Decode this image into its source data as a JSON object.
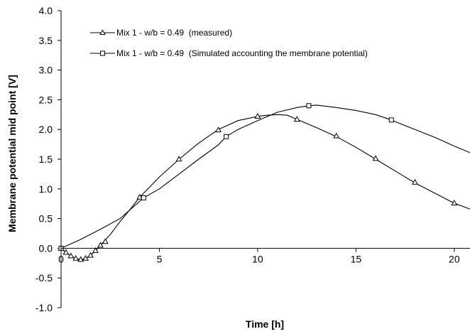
{
  "chart_data": {
    "type": "line",
    "xlabel": "Time [h]",
    "ylabel": "Membrane potential mid point [V]",
    "xlim": [
      0,
      20.8
    ],
    "ylim": [
      -1.0,
      4.0
    ],
    "x_ticks": [
      "0",
      "5",
      "10",
      "15",
      "20"
    ],
    "y_ticks": [
      "4.0",
      "3.5",
      "3.0",
      "2.5",
      "2.0",
      "1.5",
      "1.0",
      "0.5",
      "0.0",
      "-0.5",
      "-1.0"
    ],
    "grid": false,
    "legend_position": "top-left",
    "series": [
      {
        "name": "Mix 1 - w/b = 0.49  (measured)",
        "marker": "triangle",
        "curve": [
          [
            0,
            0
          ],
          [
            0.25,
            -0.07
          ],
          [
            0.5,
            -0.13
          ],
          [
            0.75,
            -0.17
          ],
          [
            1.0,
            -0.19
          ],
          [
            1.25,
            -0.17
          ],
          [
            1.5,
            -0.12
          ],
          [
            1.75,
            -0.04
          ],
          [
            2.0,
            0.05
          ],
          [
            2.5,
            0.23
          ],
          [
            3.0,
            0.45
          ],
          [
            3.5,
            0.65
          ],
          [
            4.0,
            0.86
          ],
          [
            5.0,
            1.2
          ],
          [
            6.0,
            1.5
          ],
          [
            7.0,
            1.77
          ],
          [
            8.0,
            2.0
          ],
          [
            9.0,
            2.15
          ],
          [
            10.0,
            2.22
          ],
          [
            10.5,
            2.24
          ],
          [
            11.0,
            2.25
          ],
          [
            11.5,
            2.24
          ],
          [
            12.0,
            2.17
          ],
          [
            13.0,
            2.03
          ],
          [
            14.0,
            1.88
          ],
          [
            15.0,
            1.7
          ],
          [
            16.0,
            1.5
          ],
          [
            17.0,
            1.3
          ],
          [
            18.0,
            1.1
          ],
          [
            19.0,
            0.93
          ],
          [
            20.0,
            0.76
          ],
          [
            20.8,
            0.66
          ]
        ],
        "points": [
          [
            0,
            0
          ],
          [
            0.25,
            -0.07
          ],
          [
            0.5,
            -0.13
          ],
          [
            0.75,
            -0.17
          ],
          [
            1.0,
            -0.19
          ],
          [
            1.25,
            -0.17
          ],
          [
            1.5,
            -0.12
          ],
          [
            1.75,
            -0.04
          ],
          [
            2.0,
            0.05
          ],
          [
            2.25,
            0.11
          ],
          [
            4.0,
            0.86
          ],
          [
            6.0,
            1.5
          ],
          [
            8.0,
            1.99
          ],
          [
            10.0,
            2.22
          ],
          [
            12.0,
            2.17
          ],
          [
            14.0,
            1.89
          ],
          [
            16.0,
            1.51
          ],
          [
            18.0,
            1.11
          ],
          [
            20.0,
            0.76
          ]
        ]
      },
      {
        "name": "Mix 1 - w/b = 0.49  (Simulated accounting the membrane potential)",
        "marker": "square",
        "curve": [
          [
            0,
            0
          ],
          [
            1,
            0.15
          ],
          [
            2,
            0.32
          ],
          [
            3,
            0.5
          ],
          [
            4.2,
            0.85
          ],
          [
            5.0,
            1.0
          ],
          [
            6.0,
            1.25
          ],
          [
            7.0,
            1.5
          ],
          [
            8.0,
            1.74
          ],
          [
            8.4,
            1.88
          ],
          [
            9.0,
            2.0
          ],
          [
            10.0,
            2.15
          ],
          [
            11.0,
            2.29
          ],
          [
            12.0,
            2.37
          ],
          [
            12.6,
            2.4
          ],
          [
            13.0,
            2.41
          ],
          [
            14.0,
            2.37
          ],
          [
            15.0,
            2.32
          ],
          [
            16.0,
            2.25
          ],
          [
            16.8,
            2.16
          ],
          [
            17.0,
            2.13
          ],
          [
            18.0,
            2.0
          ],
          [
            19.0,
            1.87
          ],
          [
            20.0,
            1.72
          ],
          [
            20.8,
            1.61
          ]
        ],
        "points": [
          [
            0,
            0
          ],
          [
            4.2,
            0.85
          ],
          [
            8.4,
            1.88
          ],
          [
            12.6,
            2.4
          ],
          [
            16.8,
            2.16
          ]
        ]
      }
    ]
  }
}
